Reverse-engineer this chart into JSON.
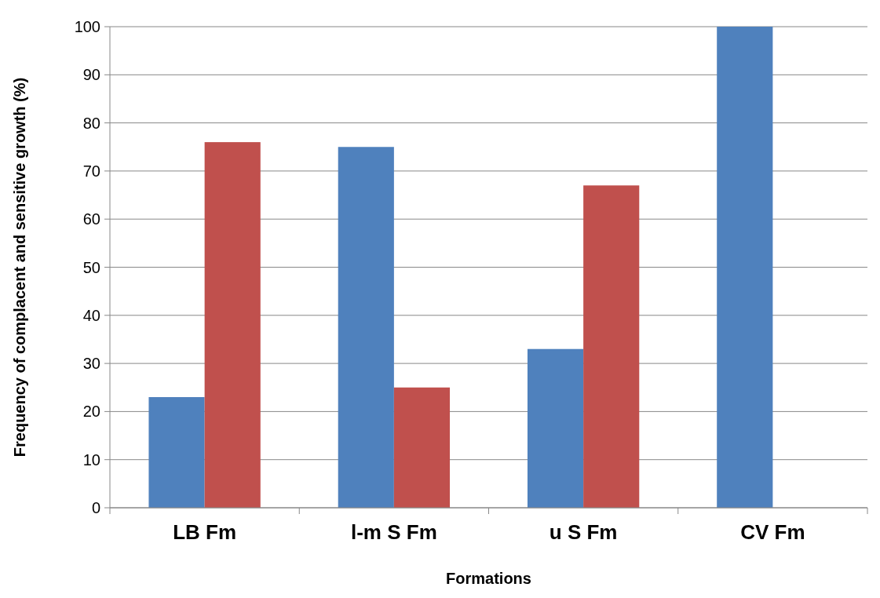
{
  "chart_data": {
    "type": "bar",
    "xlabel": "Formations",
    "ylabel": "Frequency of complacent and sensitive growth (%)",
    "categories": [
      "LB Fm",
      "l-m S Fm",
      "u S Fm",
      "CV Fm"
    ],
    "series": [
      {
        "color": "#4f81bd",
        "values": [
          23,
          75,
          33,
          100
        ]
      },
      {
        "color": "#c0504d",
        "values": [
          76,
          25,
          67,
          0
        ]
      }
    ],
    "ylim": [
      0,
      100
    ],
    "yticks": [
      0,
      10,
      20,
      30,
      40,
      50,
      60,
      70,
      80,
      90,
      100
    ],
    "grid": "y"
  }
}
